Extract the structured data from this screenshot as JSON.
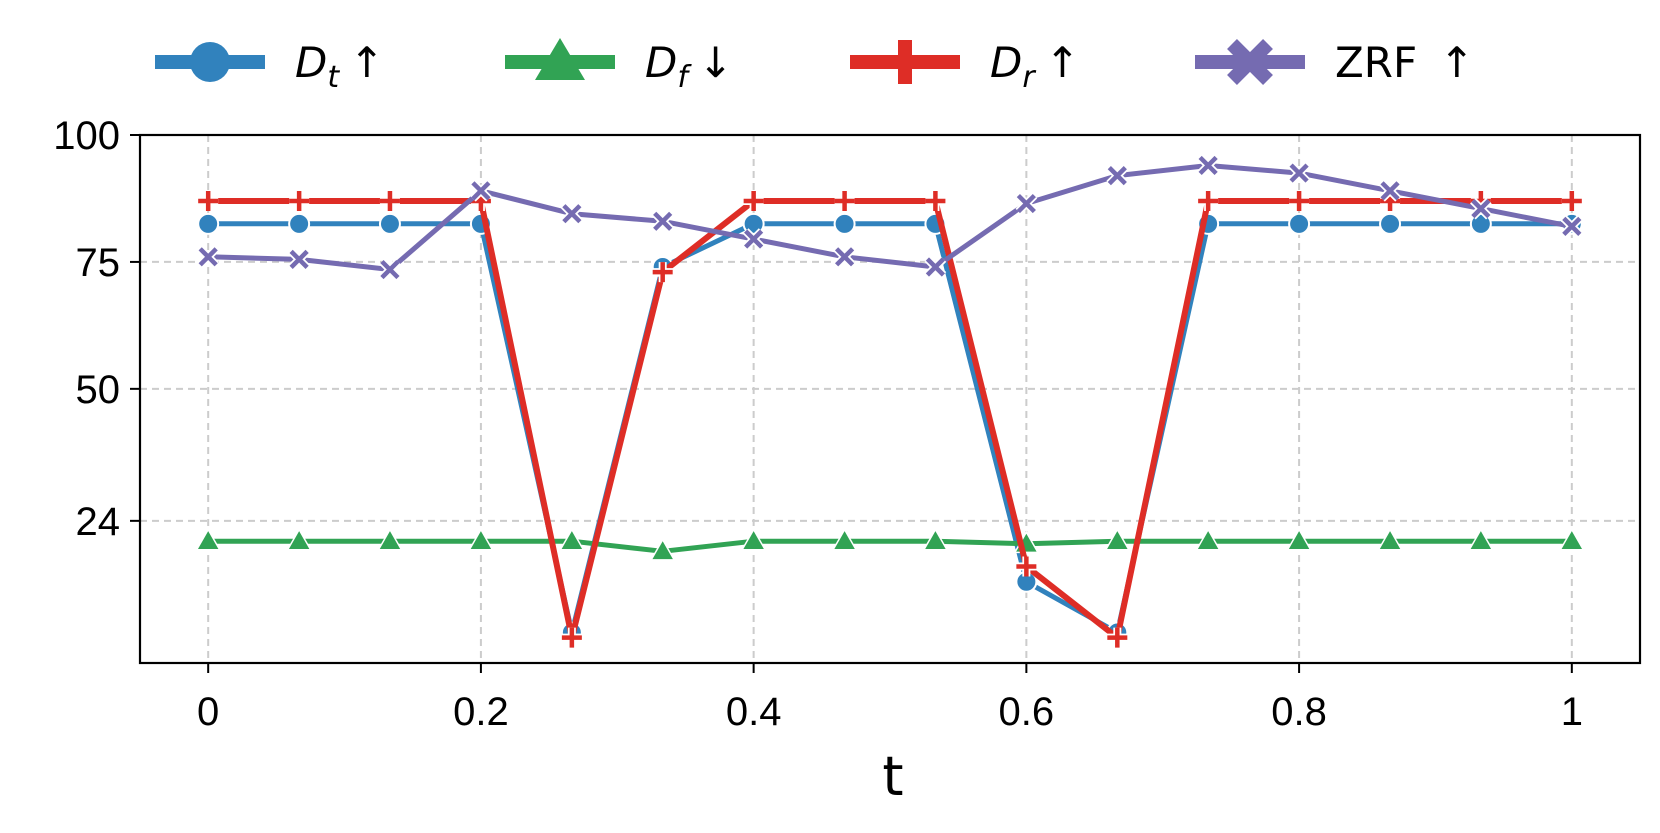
{
  "chart_data": {
    "type": "line",
    "xlabel": "t",
    "ylabel": "",
    "xlim": [
      -0.05,
      1.05
    ],
    "ylim": [
      -4,
      100
    ],
    "x_ticks": [
      0,
      0.2,
      0.4,
      0.6,
      0.8,
      1
    ],
    "x_tick_labels": [
      "0",
      "0.2",
      "0.4",
      "0.6",
      "0.8",
      "1"
    ],
    "y_ticks": [
      24,
      50,
      75,
      100
    ],
    "y_tick_labels": [
      "24",
      "50",
      "75",
      "100"
    ],
    "grid": true,
    "legend_position": "top",
    "x": [
      0,
      0.0667,
      0.1333,
      0.2,
      0.2667,
      0.3333,
      0.4,
      0.4667,
      0.5333,
      0.6,
      0.6667,
      0.7333,
      0.8,
      0.8667,
      0.9333,
      1.0
    ],
    "series": [
      {
        "name": "D_t ↑",
        "legend_main": "D",
        "legend_sub": "t",
        "legend_arrow": "↑",
        "color": "#3182bd",
        "marker": "circle",
        "values": [
          82.5,
          82.5,
          82.5,
          82.5,
          2,
          74,
          82.5,
          82.5,
          82.5,
          12,
          2,
          82.5,
          82.5,
          82.5,
          82.5,
          82.5
        ]
      },
      {
        "name": "D_f ↓",
        "legend_main": "D",
        "legend_sub": "f",
        "legend_arrow": "↓",
        "color": "#31a354",
        "marker": "triangle",
        "values": [
          20,
          20,
          20,
          20,
          20,
          18,
          20,
          20,
          20,
          19.5,
          20,
          20,
          20,
          20,
          20,
          20
        ]
      },
      {
        "name": "D_r ↑",
        "legend_main": "D",
        "legend_sub": "r",
        "legend_arrow": "↑",
        "color": "#de2d26",
        "marker": "plus",
        "values": [
          87,
          87,
          87,
          87,
          1,
          73,
          87,
          87,
          87,
          15,
          1,
          87,
          87,
          87,
          87,
          87
        ]
      },
      {
        "name": "ZRF ↑",
        "legend_main": "ZRF",
        "legend_sub": "",
        "legend_arrow": "↑",
        "color": "#756bb1",
        "marker": "x",
        "values": [
          76,
          75.5,
          73.5,
          89,
          84.5,
          83,
          79.5,
          76,
          74,
          86.5,
          92,
          94,
          92.5,
          89,
          85.5,
          82
        ]
      }
    ]
  }
}
